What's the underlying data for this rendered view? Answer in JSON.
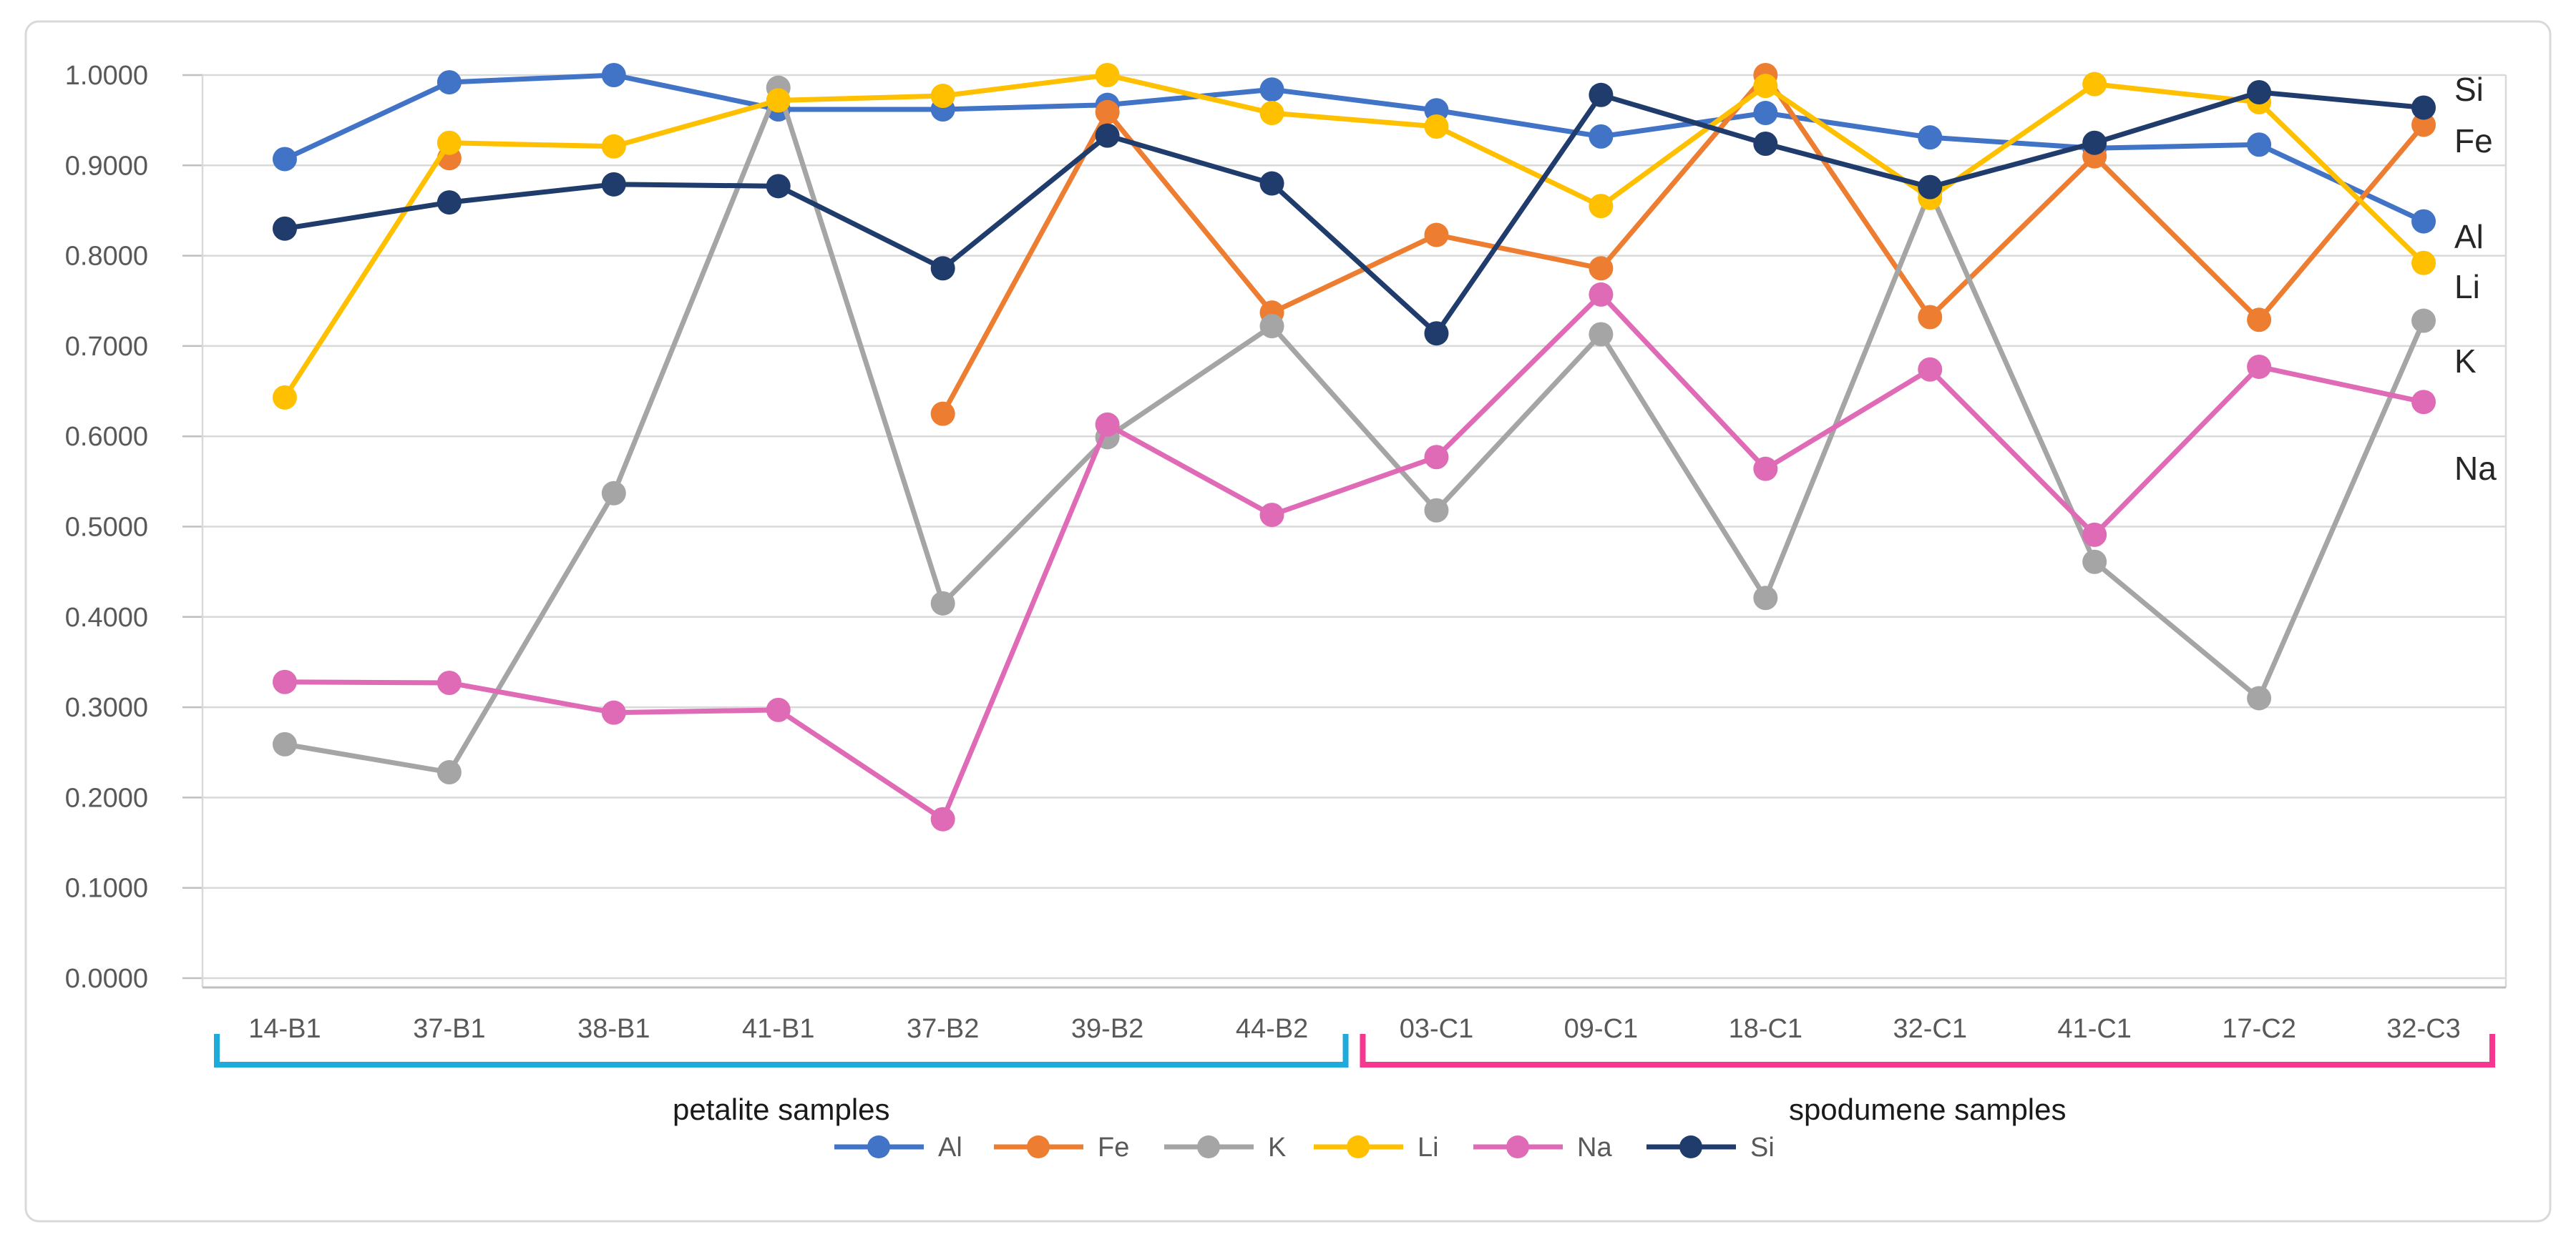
{
  "chart_data": {
    "type": "line",
    "title": "",
    "xlabel": "",
    "ylabel": "",
    "ylim": [
      0.0,
      1.0
    ],
    "grid": true,
    "legend_position": "bottom",
    "categories": [
      "14-B1",
      "37-B1",
      "38-B1",
      "41-B1",
      "37-B2",
      "39-B2",
      "44-B2",
      "03-C1",
      "09-C1",
      "18-C1",
      "32-C1",
      "41-C1",
      "17-C2",
      "32-C3"
    ],
    "y_ticks": [
      "1.0000",
      "0.9000",
      "0.8000",
      "0.7000",
      "0.6000",
      "0.5000",
      "0.4000",
      "0.3000",
      "0.2000",
      "0.1000",
      "0.0000"
    ],
    "y_tick_values": [
      1.0,
      0.9,
      0.8,
      0.7,
      0.6,
      0.5,
      0.4,
      0.3,
      0.2,
      0.1,
      0.0
    ],
    "series": [
      {
        "name": "Al",
        "color": "#4173C6",
        "values": [
          0.907,
          0.992,
          1.0,
          0.962,
          0.962,
          0.967,
          0.984,
          0.961,
          0.932,
          0.958,
          0.931,
          0.919,
          0.923,
          0.838
        ]
      },
      {
        "name": "Fe",
        "color": "#ED7D31",
        "values": [
          null,
          0.908,
          null,
          null,
          0.625,
          0.959,
          0.737,
          0.823,
          0.786,
          1.0,
          0.732,
          0.91,
          0.729,
          0.945
        ]
      },
      {
        "name": "K",
        "color": "#A5A5A5",
        "values": [
          0.259,
          0.228,
          0.537,
          0.986,
          0.415,
          0.599,
          0.722,
          0.518,
          0.713,
          0.421,
          0.871,
          0.461,
          0.31,
          0.728
        ]
      },
      {
        "name": "Li",
        "color": "#FFC000",
        "values": [
          0.643,
          0.925,
          0.921,
          0.972,
          0.977,
          1.0,
          0.958,
          0.943,
          0.855,
          0.988,
          0.864,
          0.99,
          0.97,
          0.792
        ]
      },
      {
        "name": "Na",
        "color": "#DF6BB7",
        "values": [
          0.328,
          0.327,
          0.294,
          0.297,
          0.176,
          0.613,
          0.513,
          0.577,
          0.757,
          0.564,
          0.674,
          0.491,
          0.677,
          0.638
        ]
      },
      {
        "name": "Si",
        "color": "#1F3C6D",
        "values": [
          0.83,
          0.859,
          0.879,
          0.877,
          0.786,
          0.933,
          0.88,
          0.714,
          0.978,
          0.924,
          0.876,
          0.925,
          0.981,
          0.964
        ]
      }
    ],
    "groups": [
      {
        "label": "petalite samples",
        "color": "#1FAADC",
        "start_category": "14-B1",
        "end_category": "44-B2"
      },
      {
        "label": "spodumene samples",
        "color": "#F7368F",
        "start_category": "03-C1",
        "end_category": "32-C3"
      }
    ],
    "legend": [
      "Al",
      "Fe",
      "K",
      "Li",
      "Na",
      "Si"
    ],
    "end_labels": [
      "Si",
      "Fe",
      "Al",
      "Li",
      "K",
      "Na"
    ]
  },
  "colors": {
    "gridline": "#D9D9D9",
    "axis_line": "#BFBFBF",
    "tick_text": "#595959",
    "end_label_text": "#262626",
    "group_label_text": "#1A1A1A",
    "chart_border": "#D9D9D9",
    "background": "#FFFFFF"
  }
}
